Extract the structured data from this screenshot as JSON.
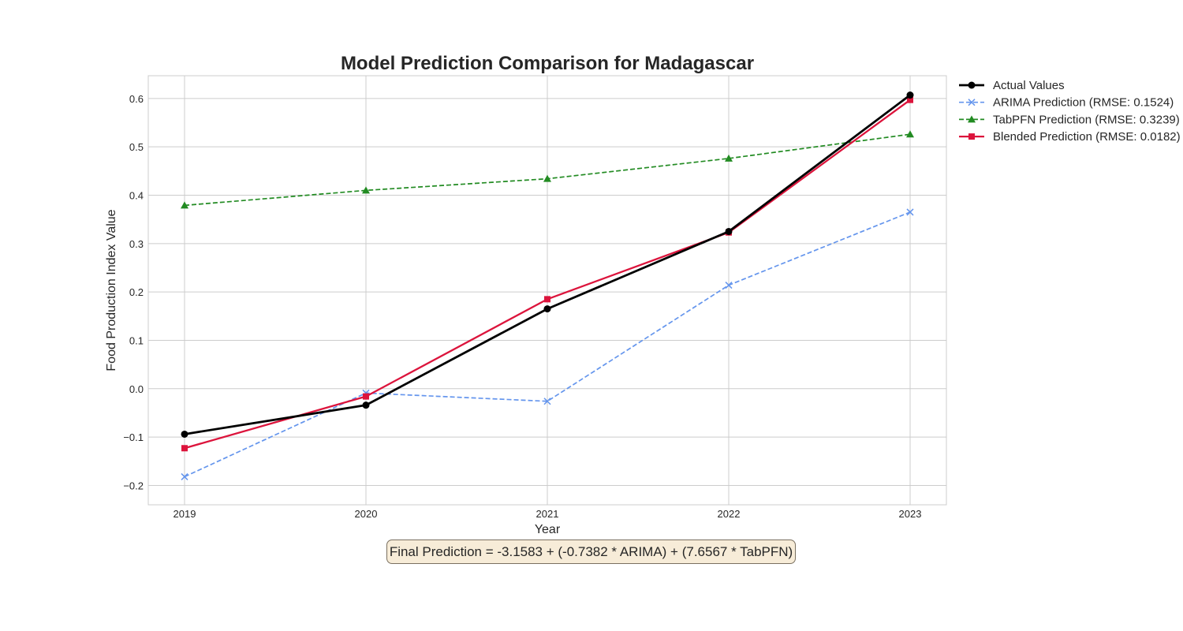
{
  "chart_data": {
    "type": "line",
    "title": "Model Prediction Comparison for Madagascar",
    "xlabel": "Year",
    "ylabel": "Food Production Index Value",
    "x": [
      2019,
      2020,
      2021,
      2022,
      2023
    ],
    "x_tick_labels": [
      "2019",
      "2020",
      "2021",
      "2022",
      "2023"
    ],
    "ylim": [
      -0.24,
      0.647
    ],
    "y_ticks": [
      -0.2,
      -0.1,
      0.0,
      0.1,
      0.2,
      0.3,
      0.4,
      0.5,
      0.6
    ],
    "y_tick_labels": [
      "−0.2",
      "−0.1",
      "0.0",
      "0.1",
      "0.2",
      "0.3",
      "0.4",
      "0.5",
      "0.6"
    ],
    "grid": true,
    "legend_position": "outside-top-right",
    "series": [
      {
        "name": "Actual Values",
        "values": [
          -0.094,
          -0.034,
          0.165,
          0.325,
          0.607
        ],
        "color": "#000000",
        "dash": "solid",
        "marker": "circle"
      },
      {
        "name": "ARIMA Prediction (RMSE: 0.1524)",
        "values": [
          -0.182,
          -0.009,
          -0.026,
          0.214,
          0.365
        ],
        "color": "#6495ed",
        "dash": "dashed",
        "marker": "x"
      },
      {
        "name": "TabPFN Prediction (RMSE: 0.3239)",
        "values": [
          0.379,
          0.41,
          0.434,
          0.476,
          0.526
        ],
        "color": "#228b22",
        "dash": "dashed",
        "marker": "triangle"
      },
      {
        "name": "Blended Prediction (RMSE: 0.0182)",
        "values": [
          -0.123,
          -0.016,
          0.185,
          0.323,
          0.597
        ],
        "color": "#dc143c",
        "dash": "solid",
        "marker": "square"
      }
    ],
    "annotation": "Final Prediction = -3.1583 + (-0.7382 * ARIMA) + (7.6567 * TabPFN)"
  }
}
